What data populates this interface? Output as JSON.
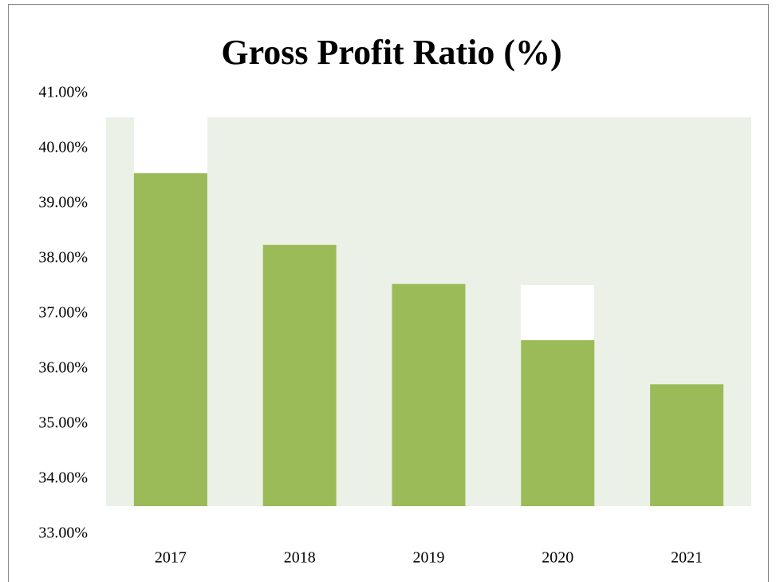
{
  "chart_data": {
    "type": "bar",
    "title": "Gross Profit Ratio (%)",
    "categories": [
      "2017",
      "2018",
      "2019",
      "2020",
      "2021"
    ],
    "values": [
      39.55,
      38.25,
      37.54,
      36.52,
      35.72
    ],
    "color": "#9bbb59",
    "ylim": [
      33,
      41
    ],
    "yticks": [
      {
        "value": 33,
        "label": "33.00%"
      },
      {
        "value": 34,
        "label": "34.00%"
      },
      {
        "value": 35,
        "label": "35.00%"
      },
      {
        "value": 36,
        "label": "36.00%"
      },
      {
        "value": 37,
        "label": "37.00%"
      },
      {
        "value": 38,
        "label": "38.00%"
      },
      {
        "value": 39,
        "label": "39.00%"
      },
      {
        "value": 40,
        "label": "40.00%"
      },
      {
        "value": 41,
        "label": "41.00%"
      }
    ],
    "grid": false
  }
}
